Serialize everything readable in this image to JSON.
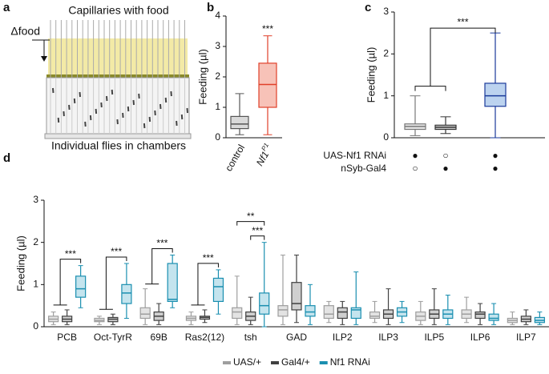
{
  "panel_labels": [
    "a",
    "b",
    "c",
    "d"
  ],
  "diagram": {
    "title": "Capillaries with food",
    "delta_label": "Δfood",
    "caption": "Individual flies in chambers"
  },
  "chart_data": [
    {
      "type": "box",
      "ylabel": "Feeding (µl)",
      "ylim": [
        0,
        4
      ],
      "yticks": [
        0,
        1,
        2,
        3,
        4
      ],
      "categories": [
        "control",
        "Nf1"
      ],
      "category_superscripts": [
        null,
        "P1"
      ],
      "boxes": [
        {
          "color": "#555555",
          "fill": "#d9d9d9",
          "values": [
            0.1,
            0.3,
            0.45,
            0.7,
            1.45
          ]
        },
        {
          "color": "#e0402a",
          "fill": "#f7c2b8",
          "values": [
            0.1,
            1.0,
            1.75,
            2.45,
            3.35
          ]
        }
      ],
      "annotations": [
        {
          "box": 1,
          "label": "***"
        }
      ]
    },
    {
      "type": "box",
      "ylabel": "Feeding (µl)",
      "ylim": [
        0,
        3
      ],
      "yticks": [
        0,
        1,
        2,
        3
      ],
      "boxes": [
        {
          "color": "#777777",
          "fill": "#e6e6e6",
          "values": [
            0.05,
            0.2,
            0.27,
            0.33,
            1.0
          ]
        },
        {
          "color": "#333333",
          "fill": "#d0d0d0",
          "values": [
            0.1,
            0.2,
            0.25,
            0.3,
            0.5
          ]
        },
        {
          "color": "#1a3a9a",
          "fill": "#bcd3ef",
          "values": [
            0,
            0.75,
            1.0,
            1.3,
            2.5
          ]
        }
      ],
      "bracket_label": "***",
      "genotype_rows": [
        {
          "label": "UAS-Nf1 RNAi",
          "cells": [
            "●",
            "○",
            "●"
          ]
        },
        {
          "label": "nSyb-Gal4",
          "cells": [
            "○",
            "●",
            "●"
          ]
        }
      ]
    },
    {
      "type": "grouped-box",
      "ylabel": "Feeding (µl)",
      "ylim": [
        0,
        3
      ],
      "yticks": [
        0,
        1,
        2,
        3
      ],
      "categories": [
        "PCB",
        "Oct-TyrR",
        "69B",
        "Ras2(12)",
        "tsh",
        "GAD",
        "ILP2",
        "ILP3",
        "ILP5",
        "ILP6",
        "ILP7"
      ],
      "series": [
        {
          "name": "UAS/+",
          "color": "#9e9e9e",
          "fill": "#e3e3e3",
          "values": [
            [
              0.05,
              0.12,
              0.18,
              0.25,
              0.35
            ],
            [
              0.05,
              0.12,
              0.15,
              0.2,
              0.25
            ],
            [
              0.05,
              0.2,
              0.3,
              0.45,
              0.9
            ],
            [
              0.05,
              0.15,
              0.2,
              0.25,
              0.35
            ],
            [
              0.05,
              0.2,
              0.35,
              0.45,
              1.2
            ],
            [
              0.05,
              0.25,
              0.4,
              0.5,
              1.7
            ],
            [
              0.1,
              0.2,
              0.3,
              0.5,
              0.6
            ],
            [
              0.1,
              0.2,
              0.25,
              0.35,
              0.6
            ],
            [
              0.05,
              0.15,
              0.25,
              0.35,
              0.6
            ],
            [
              0.1,
              0.2,
              0.3,
              0.4,
              0.7
            ],
            [
              0.05,
              0.1,
              0.15,
              0.2,
              0.35
            ]
          ]
        },
        {
          "name": "Gal4/+",
          "color": "#404040",
          "fill": "#cfcfcf",
          "values": [
            [
              0.05,
              0.12,
              0.18,
              0.25,
              0.4
            ],
            [
              0.05,
              0.12,
              0.18,
              0.22,
              0.3
            ],
            [
              0.05,
              0.15,
              0.25,
              0.35,
              0.55
            ],
            [
              0.1,
              0.18,
              0.22,
              0.25,
              0.4
            ],
            [
              0.05,
              0.15,
              0.25,
              0.35,
              0.7
            ],
            [
              0.1,
              0.4,
              0.55,
              1.05,
              1.7
            ],
            [
              0.05,
              0.2,
              0.35,
              0.45,
              0.6
            ],
            [
              0.05,
              0.2,
              0.3,
              0.4,
              0.9
            ],
            [
              0.05,
              0.2,
              0.3,
              0.4,
              0.9
            ],
            [
              0.05,
              0.2,
              0.3,
              0.35,
              0.55
            ],
            [
              0.05,
              0.12,
              0.18,
              0.25,
              0.4
            ]
          ]
        },
        {
          "name": "Nf1 RNAi",
          "color": "#1a8fb0",
          "fill": "#c4e4ee",
          "values": [
            [
              0.45,
              0.7,
              0.9,
              1.2,
              1.45
            ],
            [
              0.2,
              0.55,
              0.8,
              1.0,
              1.5
            ],
            [
              0.45,
              0.6,
              0.65,
              1.5,
              1.7
            ],
            [
              0.3,
              0.6,
              0.95,
              1.15,
              1.35
            ],
            [
              0,
              0.3,
              0.5,
              0.8,
              2.0
            ],
            [
              0.05,
              0.25,
              0.35,
              0.5,
              1.0
            ],
            [
              0.05,
              0.2,
              0.4,
              0.45,
              1.3
            ],
            [
              0.1,
              0.25,
              0.35,
              0.45,
              0.6
            ],
            [
              0.05,
              0.2,
              0.3,
              0.4,
              0.75
            ],
            [
              0.05,
              0.15,
              0.2,
              0.3,
              0.55
            ],
            [
              0.05,
              0.1,
              0.15,
              0.22,
              0.35
            ]
          ]
        }
      ],
      "comparisons": [
        {
          "category": "PCB",
          "label": "***"
        },
        {
          "category": "Oct-TyrR",
          "label": "***"
        },
        {
          "category": "69B",
          "label": "***"
        },
        {
          "category": "Ras2(12)",
          "label": "***"
        },
        {
          "category": "tsh",
          "label": "***",
          "compare": "Gal4/+"
        },
        {
          "category": "tsh",
          "label": "**",
          "compare": "UAS/+"
        }
      ]
    }
  ]
}
